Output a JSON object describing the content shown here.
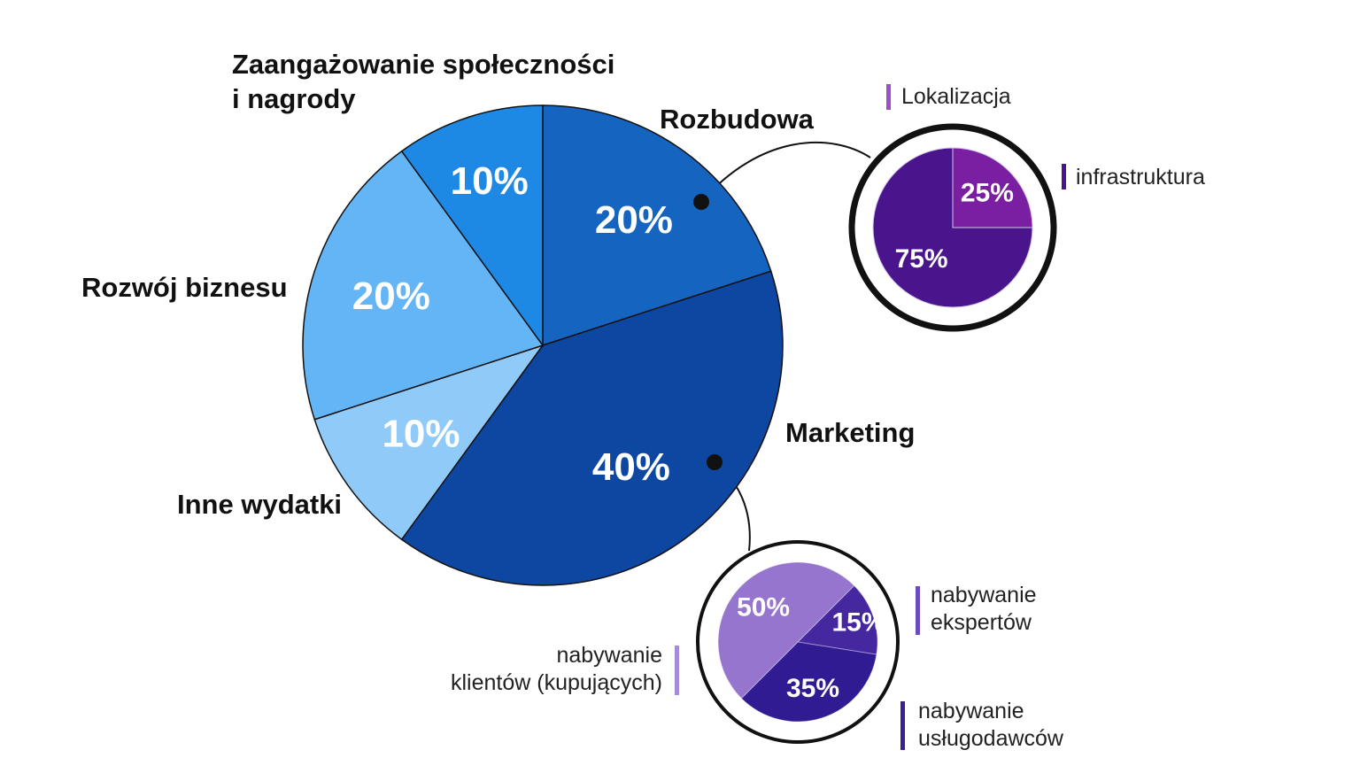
{
  "chart_data": [
    {
      "type": "pie",
      "categories": [
        "Rozbudowa",
        "Marketing",
        "Inne wydatki",
        "Rozwój biznesu",
        "Zaangażowanie społeczności i nagrody"
      ],
      "category_lines": [
        [
          "Rozbudowa"
        ],
        [
          "Marketing"
        ],
        [
          "Inne wydatki"
        ],
        [
          "Rozwój biznesu"
        ],
        [
          "Zaangażowanie społeczności",
          "i nagrody"
        ]
      ],
      "values": [
        20,
        40,
        10,
        20,
        10
      ],
      "labels": [
        "20%",
        "40%",
        "10%",
        "20%",
        "10%"
      ],
      "colors": [
        "#1565c0",
        "#0d47a1",
        "#90caf9",
        "#64b5f6",
        "#1e88e5"
      ]
    },
    {
      "type": "pie",
      "parent": "Rozbudowa",
      "categories": [
        "infrastruktura",
        "Lokalizacja"
      ],
      "category_lines": [
        [
          "infrastruktura"
        ],
        [
          "Lokalizacja"
        ]
      ],
      "values": [
        75,
        25
      ],
      "labels": [
        "75%",
        "25%"
      ],
      "colors": [
        "#4a148c",
        "#7b1fa2"
      ]
    },
    {
      "type": "pie",
      "parent": "Marketing",
      "categories": [
        "nabywanie ekspertów",
        "nabywanie usługodawców",
        "nabywanie klientów (kupujących)"
      ],
      "category_lines": [
        [
          "nabywanie",
          "ekspertów"
        ],
        [
          "nabywanie",
          "usługodawców"
        ],
        [
          "nabywanie",
          "klientów (kupujących)"
        ]
      ],
      "values": [
        15,
        35,
        50
      ],
      "labels": [
        "15%",
        "35%",
        "50%"
      ],
      "colors": [
        "#4527a0",
        "#311b92",
        "#9575cd"
      ]
    }
  ]
}
